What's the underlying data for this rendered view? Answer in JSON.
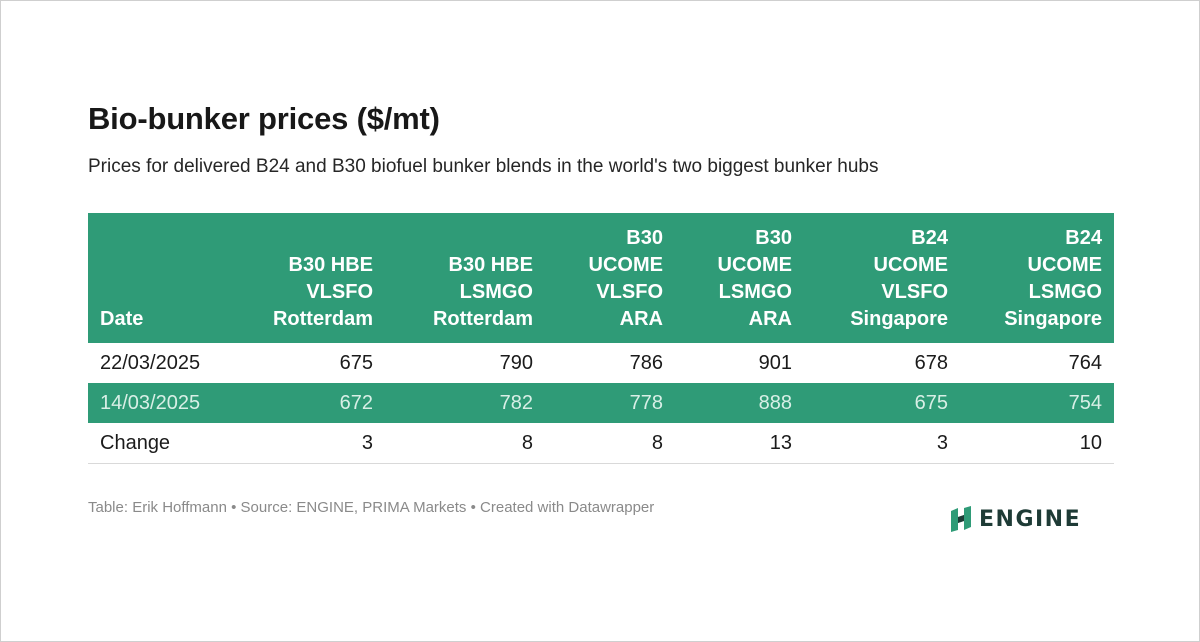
{
  "title": "Bio-bunker prices ($/mt)",
  "subtitle": "Prices for delivered B24 and B30 biofuel bunker blends in the world's two biggest bunker hubs",
  "footer": "Table: Erik Hoffmann • Source: ENGINE, PRIMA Markets • Created with Datawrapper",
  "logo": {
    "text": "ENGINE",
    "icon": "engine-logo-icon"
  },
  "colors": {
    "header_bg": "#2f9b77",
    "header_text": "#ffffff",
    "highlight_row_text": "#d8efe6",
    "logo_green": "#2f9b77",
    "logo_dark": "#1e3b36"
  },
  "chart_data": {
    "type": "table",
    "columns": [
      {
        "label": "Date"
      },
      {
        "label": "B30 HBE VLSFO Rotterdam",
        "lines": [
          "B30 HBE",
          "VLSFO",
          "Rotterdam"
        ]
      },
      {
        "label": "B30 HBE LSMGO Rotterdam",
        "lines": [
          "B30 HBE",
          "LSMGO",
          "Rotterdam"
        ]
      },
      {
        "label": "B30 UCOME VLSFO ARA",
        "lines": [
          "B30",
          "UCOME",
          "VLSFO",
          "ARA"
        ]
      },
      {
        "label": "B30 UCOME LSMGO ARA",
        "lines": [
          "B30",
          "UCOME",
          "LSMGO",
          "ARA"
        ]
      },
      {
        "label": "B24 UCOME VLSFO Singapore",
        "lines": [
          "B24",
          "UCOME",
          "VLSFO",
          "Singapore"
        ]
      },
      {
        "label": "B24 UCOME LSMGO Singapore",
        "lines": [
          "B24",
          "UCOME",
          "LSMGO",
          "Singapore"
        ]
      }
    ],
    "rows": [
      {
        "label": "22/03/2025",
        "values": [
          675,
          790,
          786,
          901,
          678,
          764
        ],
        "highlight": false
      },
      {
        "label": "14/03/2025",
        "values": [
          672,
          782,
          778,
          888,
          675,
          754
        ],
        "highlight": true
      },
      {
        "label": "Change",
        "values": [
          3,
          8,
          8,
          13,
          3,
          10
        ],
        "highlight": false
      }
    ]
  }
}
